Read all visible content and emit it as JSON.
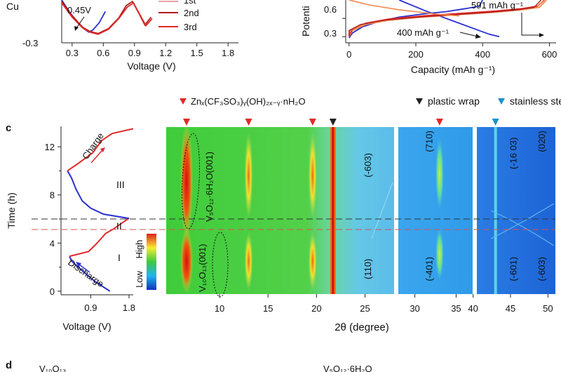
{
  "colors": {
    "red": "#e02a2a",
    "dark_red": "#b01c1c",
    "blue": "#2a2fd0",
    "orange": "#ef8a50",
    "marker_red": "#e02a2a",
    "marker_black": "#222222",
    "marker_cyan": "#1f8fcf",
    "dash_black": "#333333",
    "dash_red": "#e05050"
  },
  "panel_labels": {
    "c": "c",
    "d": "d"
  },
  "chart_data": [
    {
      "id": "cv-partial",
      "type": "line",
      "xlabel": "Voltage (V)",
      "ylabel": "Cu",
      "x_ticks": [
        "0.3",
        "0.6",
        "0.9",
        "1.2",
        "1.5",
        "1.8"
      ],
      "y_ticks": [
        "-0.3"
      ],
      "xlim": [
        0.2,
        1.9
      ],
      "ylim": [
        -0.3,
        0.3
      ],
      "legend_entries": [
        "1st",
        "2nd",
        "3rd"
      ],
      "annotation": "0.45V",
      "series": [
        {
          "name": "1st",
          "x": [
            0.2,
            0.28,
            0.36,
            0.42,
            0.46,
            0.5,
            0.56,
            0.62
          ],
          "y": [
            0.3,
            0.12,
            -0.02,
            -0.11,
            -0.15,
            -0.12,
            -0.02,
            0.14
          ]
        },
        {
          "name": "2nd",
          "x": [
            0.2,
            0.3,
            0.4,
            0.47,
            0.55,
            0.65,
            0.75,
            0.82,
            0.88,
            0.94,
            1.0,
            1.06
          ],
          "y": [
            0.28,
            0.08,
            -0.08,
            -0.14,
            -0.17,
            -0.1,
            0.05,
            0.22,
            0.28,
            0.12,
            -0.05,
            0.06
          ]
        },
        {
          "name": "3rd",
          "x": [
            0.2,
            0.3,
            0.4,
            0.47,
            0.55,
            0.65,
            0.75,
            0.83,
            0.89,
            0.95,
            1.01,
            1.07
          ],
          "y": [
            0.26,
            0.06,
            -0.09,
            -0.15,
            -0.18,
            -0.11,
            0.04,
            0.2,
            0.26,
            0.1,
            -0.06,
            0.04
          ]
        }
      ]
    },
    {
      "id": "gcd-partial",
      "type": "line",
      "xlabel": "Capacity (mAh g⁻¹)",
      "ylabel": "Potenti",
      "x_ticks": [
        "0",
        "200",
        "400",
        "600"
      ],
      "y_ticks": [
        "0.3",
        "0.6"
      ],
      "xlim": [
        -10,
        620
      ],
      "ylim": [
        0.2,
        0.9
      ],
      "annotations": [
        "591 mAh g⁻¹",
        "400 mAh g⁻¹"
      ],
      "series": [
        {
          "x": [
            0,
            10,
            40,
            90,
            150,
            220,
            290,
            350,
            390,
            400
          ],
          "y": [
            0.28,
            0.36,
            0.46,
            0.55,
            0.62,
            0.67,
            0.71,
            0.76,
            0.8,
            0.9
          ]
        },
        {
          "x": [
            150,
            230,
            310,
            380,
            420,
            450
          ],
          "y": [
            0.9,
            0.72,
            0.56,
            0.42,
            0.34,
            0.3
          ]
        },
        {
          "x": [
            0,
            10,
            50,
            120,
            220,
            330,
            440,
            520,
            570,
            591
          ],
          "y": [
            0.3,
            0.4,
            0.5,
            0.57,
            0.62,
            0.66,
            0.7,
            0.74,
            0.78,
            0.9
          ]
        },
        {
          "x": [
            0,
            10,
            50,
            120,
            220,
            330,
            440,
            520,
            565,
            585
          ],
          "y": [
            0.32,
            0.42,
            0.52,
            0.59,
            0.64,
            0.68,
            0.72,
            0.76,
            0.8,
            0.9
          ]
        }
      ]
    },
    {
      "id": "voltage-time",
      "type": "line",
      "xlabel": "Voltage (V)",
      "ylabel": "Time (h)",
      "x_ticks": [
        "0.9",
        "1.8"
      ],
      "y_ticks": [
        "0",
        "4",
        "8",
        "12"
      ],
      "xlim": [
        0.2,
        1.9
      ],
      "ylim": [
        -0.3,
        13.7
      ],
      "annotations": [
        "Charge",
        "Discharge"
      ],
      "series": [
        {
          "x": [
            1.35,
            1.0,
            0.7,
            0.45,
            0.4
          ],
          "y": [
            0.0,
            0.8,
            1.7,
            2.5,
            2.9
          ]
        },
        {
          "x": [
            0.4,
            0.85,
            1.05,
            1.25,
            1.45,
            1.65,
            1.8
          ],
          "y": [
            2.9,
            3.3,
            4.0,
            4.8,
            5.2,
            5.7,
            6.05
          ]
        },
        {
          "x": [
            1.8,
            1.2,
            0.9,
            0.7,
            0.55,
            0.45,
            0.35
          ],
          "y": [
            6.05,
            6.4,
            6.9,
            7.5,
            8.5,
            9.4,
            10.0
          ]
        },
        {
          "x": [
            0.35,
            0.6,
            0.95,
            1.15,
            1.4,
            1.9
          ],
          "y": [
            10.0,
            10.6,
            11.5,
            12.5,
            13.1,
            13.5
          ]
        }
      ]
    },
    {
      "id": "xrd-heatmap",
      "type": "heatmap",
      "xlabel": "2θ (degree)",
      "x_ticks": [
        "10",
        "15",
        "20",
        "25",
        "30",
        "35",
        "40",
        "45",
        "50"
      ],
      "xlim": [
        4.5,
        51
      ],
      "colorbar": {
        "high_label": "High",
        "low_label": "Low"
      },
      "stages": [
        "I",
        "II",
        "III"
      ],
      "legend": [
        {
          "label": "Znₓ(CF₃SO₃)ᵧ(OH)₂ₓ₋ᵧ·nH₂O",
          "color": "#e02a2a"
        },
        {
          "label": "plastic wrap",
          "color": "#222222"
        },
        {
          "label": "stainless steel",
          "color": "#1f8fcf"
        }
      ],
      "marker_positions": [
        {
          "x": 6.6,
          "kind": "red"
        },
        {
          "x": 13.0,
          "kind": "red"
        },
        {
          "x": 19.6,
          "kind": "red"
        },
        {
          "x": 21.7,
          "kind": "black"
        },
        {
          "x": 33.0,
          "kind": "red"
        },
        {
          "x": 43.0,
          "kind": "cyan"
        }
      ],
      "phase_labels": [
        "V₅O₁₂·6H₂O(001)",
        "V₁₀O₁₃(001)"
      ],
      "peak_labels": [
        {
          "text": "(-603)",
          "x": 25.6,
          "t": 10.5
        },
        {
          "text": "(110)",
          "x": 25.6,
          "t": 1.8
        },
        {
          "text": "(710)",
          "x": 32.1,
          "t": 12.5
        },
        {
          "text": "(-401)",
          "x": 32.1,
          "t": 1.8
        },
        {
          "text": "(-16 03)",
          "x": 45.8,
          "t": 11.5
        },
        {
          "text": "(020)",
          "x": 49.6,
          "t": 12.5
        },
        {
          "text": "(-601)",
          "x": 45.8,
          "t": 1.8
        },
        {
          "text": "(-603)",
          "x": 49.6,
          "t": 1.8
        }
      ]
    }
  ],
  "panel_d": {
    "label_left": "V₁₀O₁₃",
    "label_right": "V₅O₁₂·6H₂O"
  }
}
